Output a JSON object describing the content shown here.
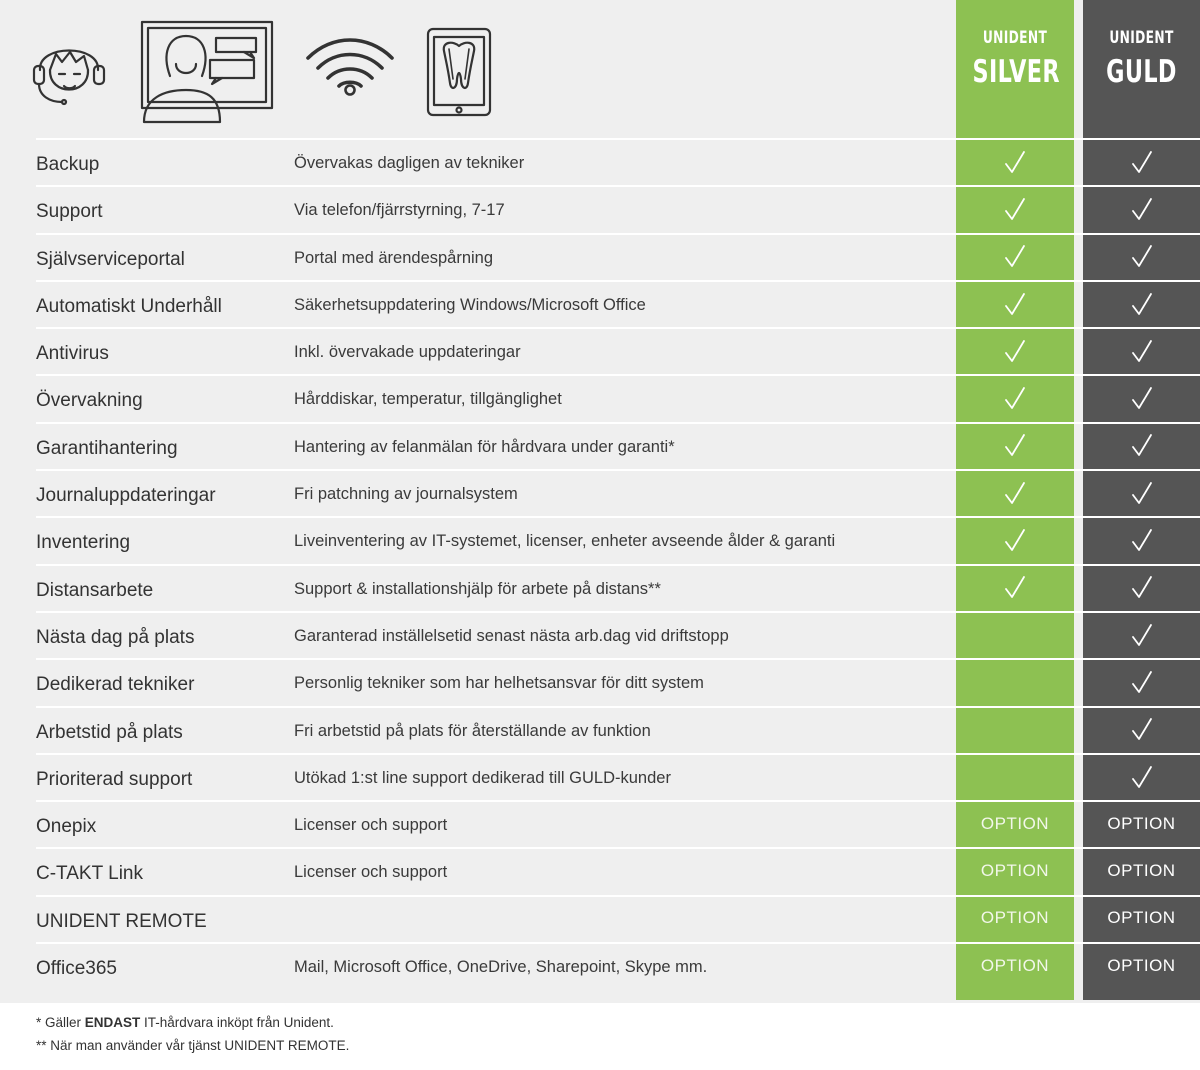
{
  "plans": {
    "silver": {
      "brand": "UNIDENT",
      "tier": "SILVER",
      "color": "#8dc152"
    },
    "guld": {
      "brand": "UNIDENT",
      "tier": "GULD",
      "color": "#555555"
    }
  },
  "header_icons": [
    "headset-support-icon",
    "video-chat-icon",
    "wifi-icon",
    "tablet-tooth-icon"
  ],
  "rows": [
    {
      "feature": "Backup",
      "description": "Övervakas dagligen av tekniker",
      "silver": "check",
      "guld": "check"
    },
    {
      "feature": "Support",
      "description": "Via telefon/fjärrstyrning, 7-17",
      "silver": "check",
      "guld": "check"
    },
    {
      "feature": "Självserviceportal",
      "description": "Portal med ärendespårning",
      "silver": "check",
      "guld": "check"
    },
    {
      "feature": "Automatiskt Underhåll",
      "description": "Säkerhetsuppdatering Windows/Microsoft Office",
      "silver": "check",
      "guld": "check"
    },
    {
      "feature": "Antivirus",
      "description": "Inkl. övervakade uppdateringar",
      "silver": "check",
      "guld": "check"
    },
    {
      "feature": "Övervakning",
      "description": "Hårddiskar, temperatur, tillgänglighet",
      "silver": "check",
      "guld": "check"
    },
    {
      "feature": "Garantihantering",
      "description": "Hantering av felanmälan för hårdvara under garanti*",
      "silver": "check",
      "guld": "check"
    },
    {
      "feature": "Journaluppdateringar",
      "description": "Fri patchning av journalsystem",
      "silver": "check",
      "guld": "check"
    },
    {
      "feature": "Inventering",
      "description": "Liveinventering av IT-systemet, licenser, enheter avseende ålder & garanti",
      "silver": "check",
      "guld": "check"
    },
    {
      "feature": "Distansarbete",
      "description": "Support & installationshjälp för arbete på distans**",
      "silver": "check",
      "guld": "check"
    },
    {
      "feature": "Nästa dag på plats",
      "description": "Garanterad inställelsetid senast nästa arb.dag vid driftstopp",
      "silver": "",
      "guld": "check"
    },
    {
      "feature": "Dedikerad tekniker",
      "description": "Personlig tekniker som har helhetsansvar för ditt system",
      "silver": "",
      "guld": "check"
    },
    {
      "feature": "Arbetstid på plats",
      "description": "Fri arbetstid på plats för återställande av funktion",
      "silver": "",
      "guld": "check"
    },
    {
      "feature": "Prioriterad support",
      "description": "Utökad 1:st line support dedikerad till GULD-kunder",
      "silver": "",
      "guld": "check"
    },
    {
      "feature": "Onepix",
      "description": "Licenser och support",
      "silver": "OPTION",
      "guld": "OPTION"
    },
    {
      "feature": "C-TAKT Link",
      "description": "Licenser och support",
      "silver": "OPTION",
      "guld": "OPTION"
    },
    {
      "feature": "UNIDENT REMOTE",
      "description": "",
      "silver": "OPTION",
      "guld": "OPTION"
    },
    {
      "feature": "Office365",
      "description": "Mail, Microsoft Office, OneDrive, Sharepoint, Skype mm.",
      "silver": "OPTION",
      "guld": "OPTION"
    }
  ],
  "footnotes": {
    "note1_prefix": "* Gäller ",
    "note1_bold": "ENDAST",
    "note1_suffix": " IT-hårdvara inköpt från Unident.",
    "note2": "** När man använder vår tjänst UNIDENT REMOTE."
  }
}
